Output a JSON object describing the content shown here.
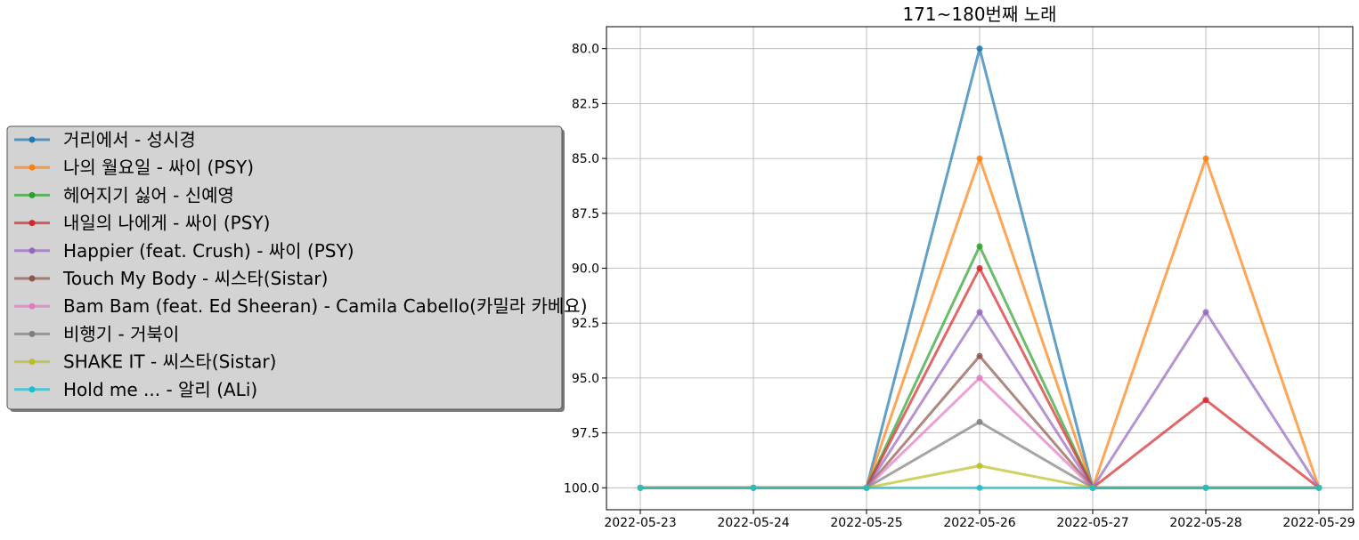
{
  "chart_data": {
    "type": "line",
    "title": "171~180번째 노래",
    "xlabel": "",
    "ylabel": "",
    "x": [
      "2022-05-23",
      "2022-05-24",
      "2022-05-25",
      "2022-05-26",
      "2022-05-27",
      "2022-05-28",
      "2022-05-29"
    ],
    "ylim": [
      101,
      79
    ],
    "y_inverted": true,
    "yticks": [
      "80.0",
      "82.5",
      "85.0",
      "87.5",
      "90.0",
      "92.5",
      "95.0",
      "97.5",
      "100.0"
    ],
    "grid": true,
    "legend_position": "left",
    "series": [
      {
        "name": "거리에서 - 성시경",
        "color": "#1f77b4",
        "values": [
          100,
          100,
          100,
          80,
          100,
          100,
          100
        ]
      },
      {
        "name": "나의 월요일 - 싸이 (PSY)",
        "color": "#ff7f0e",
        "values": [
          100,
          100,
          100,
          85,
          100,
          85,
          100
        ]
      },
      {
        "name": "헤어지기 싫어 - 신예영",
        "color": "#2ca02c",
        "values": [
          100,
          100,
          100,
          89,
          100,
          100,
          100
        ]
      },
      {
        "name": "내일의 나에게 - 싸이 (PSY)",
        "color": "#d62728",
        "values": [
          100,
          100,
          100,
          90,
          100,
          96,
          100
        ]
      },
      {
        "name": "Happier (feat. Crush) - 싸이 (PSY)",
        "color": "#9467bd",
        "values": [
          100,
          100,
          100,
          92,
          100,
          92,
          100
        ]
      },
      {
        "name": "Touch My Body - 씨스타(Sistar)",
        "color": "#8c564b",
        "values": [
          100,
          100,
          100,
          94,
          100,
          100,
          100
        ]
      },
      {
        "name": "Bam Bam (feat. Ed Sheeran) - Camila Cabello(카밀라 카베요)",
        "color": "#e377c2",
        "values": [
          100,
          100,
          100,
          95,
          100,
          100,
          100
        ]
      },
      {
        "name": "비행기 - 거북이",
        "color": "#7f7f7f",
        "values": [
          100,
          100,
          100,
          97,
          100,
          100,
          100
        ]
      },
      {
        "name": "SHAKE IT - 씨스타(Sistar)",
        "color": "#bcbd22",
        "values": [
          100,
          100,
          100,
          99,
          100,
          100,
          100
        ]
      },
      {
        "name": "Hold me ... - 알리 (ALi)",
        "color": "#17becf",
        "values": [
          100,
          100,
          100,
          100,
          100,
          100,
          100
        ]
      }
    ]
  }
}
